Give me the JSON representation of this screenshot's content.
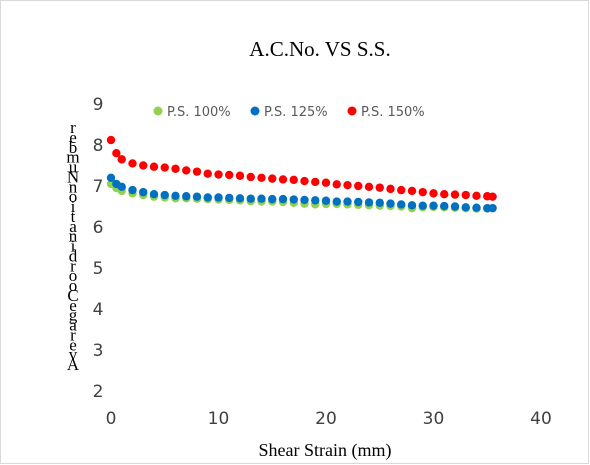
{
  "chart_data": {
    "type": "scatter",
    "title": "A.C.No. VS S.S.",
    "xlabel": "Shear Strain (mm)",
    "ylabel": "Average Coordination Number",
    "xlim": [
      0,
      40
    ],
    "ylim": [
      2,
      9
    ],
    "xticks": [
      "0",
      "10",
      "20",
      "30",
      "40"
    ],
    "yticks": [
      "2",
      "3",
      "4",
      "5",
      "6",
      "7",
      "8",
      "9"
    ],
    "grid": false,
    "legend_position": "top",
    "series": [
      {
        "name": "P.S. 100%",
        "color": "#92d050",
        "points": [
          [
            0.0,
            7.05
          ],
          [
            0.5,
            6.95
          ],
          [
            1,
            6.88
          ],
          [
            2,
            6.82
          ],
          [
            3,
            6.78
          ],
          [
            4,
            6.74
          ],
          [
            5,
            6.72
          ],
          [
            6,
            6.7
          ],
          [
            7,
            6.7
          ],
          [
            8,
            6.69
          ],
          [
            9,
            6.68
          ],
          [
            10,
            6.67
          ],
          [
            11,
            6.66
          ],
          [
            12,
            6.65
          ],
          [
            13,
            6.63
          ],
          [
            14,
            6.62
          ],
          [
            15,
            6.62
          ],
          [
            16,
            6.61
          ],
          [
            17,
            6.59
          ],
          [
            18,
            6.57
          ],
          [
            19,
            6.55
          ],
          [
            20,
            6.56
          ],
          [
            21,
            6.56
          ],
          [
            22,
            6.55
          ],
          [
            23,
            6.54
          ],
          [
            24,
            6.53
          ],
          [
            25,
            6.52
          ],
          [
            26,
            6.51
          ],
          [
            27,
            6.5
          ],
          [
            28,
            6.46
          ],
          [
            29,
            6.48
          ],
          [
            30,
            6.49
          ],
          [
            31,
            6.48
          ],
          [
            32,
            6.47
          ],
          [
            33,
            6.46
          ],
          [
            34,
            6.45
          ],
          [
            35,
            6.45
          ]
        ]
      },
      {
        "name": "P.S. 125%",
        "color": "#0070c0",
        "points": [
          [
            0.0,
            7.2
          ],
          [
            0.5,
            7.05
          ],
          [
            1,
            6.98
          ],
          [
            2,
            6.9
          ],
          [
            3,
            6.85
          ],
          [
            4,
            6.8
          ],
          [
            5,
            6.78
          ],
          [
            6,
            6.76
          ],
          [
            7,
            6.75
          ],
          [
            8,
            6.74
          ],
          [
            9,
            6.72
          ],
          [
            10,
            6.72
          ],
          [
            11,
            6.71
          ],
          [
            12,
            6.7
          ],
          [
            13,
            6.69
          ],
          [
            14,
            6.69
          ],
          [
            15,
            6.68
          ],
          [
            16,
            6.68
          ],
          [
            17,
            6.67
          ],
          [
            18,
            6.66
          ],
          [
            19,
            6.65
          ],
          [
            20,
            6.64
          ],
          [
            21,
            6.62
          ],
          [
            22,
            6.62
          ],
          [
            23,
            6.61
          ],
          [
            24,
            6.6
          ],
          [
            25,
            6.59
          ],
          [
            26,
            6.57
          ],
          [
            27,
            6.55
          ],
          [
            28,
            6.53
          ],
          [
            29,
            6.52
          ],
          [
            30,
            6.52
          ],
          [
            31,
            6.51
          ],
          [
            32,
            6.5
          ],
          [
            33,
            6.48
          ],
          [
            34,
            6.47
          ],
          [
            35,
            6.46
          ],
          [
            35.5,
            6.46
          ]
        ]
      },
      {
        "name": "P.S. 150%",
        "color": "#ff0000",
        "points": [
          [
            0.0,
            8.12
          ],
          [
            0.5,
            7.8
          ],
          [
            1,
            7.65
          ],
          [
            2,
            7.55
          ],
          [
            3,
            7.5
          ],
          [
            4,
            7.47
          ],
          [
            5,
            7.45
          ],
          [
            6,
            7.42
          ],
          [
            7,
            7.38
          ],
          [
            8,
            7.35
          ],
          [
            9,
            7.3
          ],
          [
            10,
            7.28
          ],
          [
            11,
            7.27
          ],
          [
            12,
            7.25
          ],
          [
            13,
            7.22
          ],
          [
            14,
            7.2
          ],
          [
            15,
            7.18
          ],
          [
            16,
            7.16
          ],
          [
            17,
            7.15
          ],
          [
            18,
            7.12
          ],
          [
            19,
            7.1
          ],
          [
            20,
            7.08
          ],
          [
            21,
            7.04
          ],
          [
            22,
            7.02
          ],
          [
            23,
            7.0
          ],
          [
            24,
            6.98
          ],
          [
            25,
            6.96
          ],
          [
            26,
            6.93
          ],
          [
            27,
            6.9
          ],
          [
            28,
            6.88
          ],
          [
            29,
            6.85
          ],
          [
            30,
            6.82
          ],
          [
            31,
            6.8
          ],
          [
            32,
            6.79
          ],
          [
            33,
            6.78
          ],
          [
            34,
            6.76
          ],
          [
            35,
            6.75
          ],
          [
            35.5,
            6.74
          ]
        ]
      }
    ]
  }
}
